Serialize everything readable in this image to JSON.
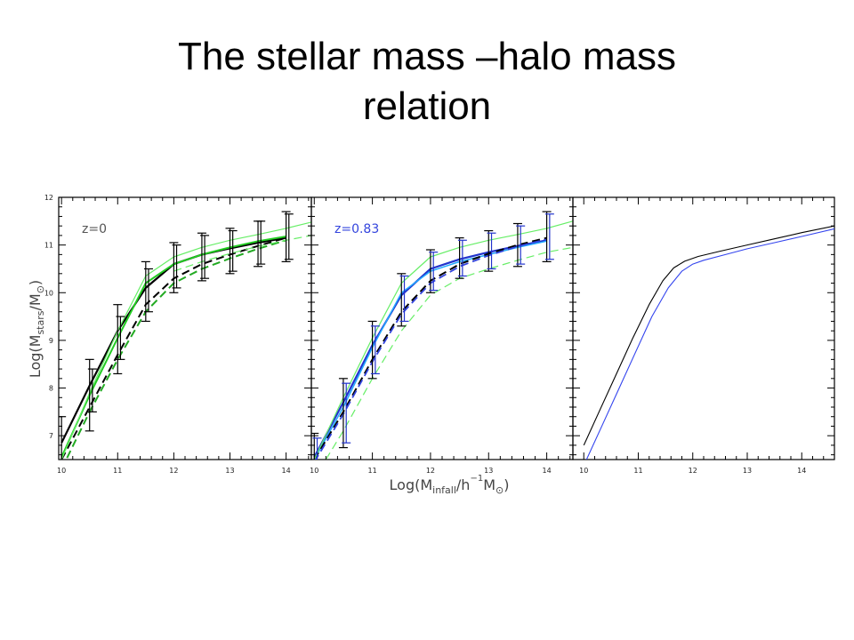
{
  "slide": {
    "title": "The stellar mass –halo mass relation"
  },
  "chart_data": [
    {
      "type": "line",
      "panel": "left",
      "annotation": "z=0",
      "annotation_color": "#555555",
      "xlabel": "Log(M_infall/h^-1 M_sun)",
      "ylabel": "Log(M_stars/M_sun)",
      "xlim": [
        9.95,
        14.45
      ],
      "ylim": [
        6.5,
        12
      ],
      "x_ticks": [
        10,
        11,
        12,
        13,
        14
      ],
      "y_ticks": [
        7,
        8,
        9,
        10,
        11,
        12
      ],
      "series": [
        {
          "style": "solid",
          "color": "#000000",
          "width": 2.2,
          "x": [
            10,
            10.5,
            11,
            11.5,
            12,
            12.5,
            13,
            13.5,
            14
          ],
          "y": [
            6.85,
            8.05,
            9.2,
            10.1,
            10.6,
            10.8,
            10.93,
            11.05,
            11.15
          ]
        },
        {
          "style": "solid",
          "color": "#22cc22",
          "width": 2.0,
          "x": [
            10,
            10.5,
            11,
            11.5,
            12,
            12.5,
            13,
            13.5,
            14
          ],
          "y": [
            6.55,
            7.85,
            9.05,
            10.2,
            10.6,
            10.8,
            10.95,
            11.08,
            11.18
          ]
        },
        {
          "style": "dashed",
          "color": "#000000",
          "width": 2.0,
          "x": [
            10,
            10.5,
            11,
            11.5,
            12,
            12.5,
            13,
            13.5,
            14
          ],
          "y": [
            6.5,
            7.6,
            8.7,
            9.75,
            10.3,
            10.6,
            10.8,
            10.98,
            11.15
          ]
        },
        {
          "style": "dashed",
          "color": "#22aa22",
          "width": 2.0,
          "x": [
            10,
            10.5,
            11,
            11.5,
            12,
            12.5,
            13,
            13.5,
            14
          ],
          "y": [
            6.3,
            7.5,
            8.6,
            9.6,
            10.2,
            10.5,
            10.72,
            10.92,
            11.1
          ]
        },
        {
          "style": "solid",
          "color": "#66ee66",
          "width": 1.2,
          "x": [
            10,
            10.5,
            11,
            11.5,
            12,
            12.5,
            13,
            13.5,
            14,
            14.45
          ],
          "y": [
            6.5,
            7.9,
            9.2,
            10.35,
            10.75,
            10.95,
            11.1,
            11.22,
            11.35,
            11.48
          ]
        },
        {
          "style": "dashed",
          "color": "#66ee66",
          "width": 1.2,
          "x": [
            12,
            12.5,
            13,
            13.5,
            14,
            14.45
          ],
          "y": [
            10.45,
            10.65,
            10.82,
            10.97,
            11.1,
            11.2
          ]
        }
      ],
      "error_bars": [
        {
          "x": 10,
          "y": 6.85,
          "lo": 6.4,
          "hi": 7.4
        },
        {
          "x": 10.5,
          "y": 7.85,
          "lo": 7.1,
          "hi": 8.6
        },
        {
          "x": 10.55,
          "y": 8.05,
          "lo": 7.5,
          "hi": 8.4
        },
        {
          "x": 11,
          "y": 9.2,
          "lo": 8.3,
          "hi": 9.75
        },
        {
          "x": 11.05,
          "y": 8.9,
          "lo": 8.6,
          "hi": 9.5
        },
        {
          "x": 11.5,
          "y": 10.1,
          "lo": 9.4,
          "hi": 10.65
        },
        {
          "x": 11.55,
          "y": 9.8,
          "lo": 9.6,
          "hi": 10.5
        },
        {
          "x": 12,
          "y": 10.6,
          "lo": 10.0,
          "hi": 11.05
        },
        {
          "x": 12.05,
          "y": 10.3,
          "lo": 10.1,
          "hi": 11.0
        },
        {
          "x": 12.5,
          "y": 10.8,
          "lo": 10.25,
          "hi": 11.25
        },
        {
          "x": 12.55,
          "y": 10.6,
          "lo": 10.3,
          "hi": 11.2
        },
        {
          "x": 13,
          "y": 10.93,
          "lo": 10.4,
          "hi": 11.35
        },
        {
          "x": 13.05,
          "y": 10.8,
          "lo": 10.45,
          "hi": 11.3
        },
        {
          "x": 13.5,
          "y": 11.05,
          "lo": 10.55,
          "hi": 11.5
        },
        {
          "x": 13.55,
          "y": 10.98,
          "lo": 10.6,
          "hi": 11.5
        },
        {
          "x": 14,
          "y": 11.15,
          "lo": 10.65,
          "hi": 11.7
        },
        {
          "x": 14.05,
          "y": 11.15,
          "lo": 10.7,
          "hi": 11.65
        }
      ]
    },
    {
      "type": "line",
      "panel": "middle",
      "annotation": "z=0.83",
      "annotation_color": "#3344dd",
      "xlim": [
        9.95,
        14.45
      ],
      "ylim": [
        6.5,
        12
      ],
      "x_ticks": [
        10,
        11,
        12,
        13,
        14
      ],
      "series": [
        {
          "style": "solid",
          "color": "#2233cc",
          "width": 2.2,
          "x": [
            10,
            10.5,
            11,
            11.5,
            12,
            12.5,
            13,
            13.5,
            14
          ],
          "y": [
            6.55,
            7.7,
            8.9,
            9.95,
            10.5,
            10.7,
            10.85,
            10.98,
            11.1
          ]
        },
        {
          "style": "solid",
          "color": "#22aaff",
          "width": 1.5,
          "x": [
            10,
            10.5,
            11,
            11.5,
            12,
            12.5,
            13,
            13.5,
            14
          ],
          "y": [
            6.5,
            7.6,
            8.85,
            10.0,
            10.45,
            10.65,
            10.8,
            10.95,
            11.08
          ]
        },
        {
          "style": "dashed",
          "color": "#000000",
          "width": 2.0,
          "x": [
            10,
            10.5,
            11,
            11.5,
            12,
            12.5,
            13,
            13.5,
            14
          ],
          "y": [
            6.5,
            7.5,
            8.6,
            9.6,
            10.25,
            10.6,
            10.82,
            11.0,
            11.15
          ]
        },
        {
          "style": "dashed",
          "color": "#3344dd",
          "width": 1.8,
          "x": [
            10,
            10.5,
            11,
            11.5,
            12,
            12.5,
            13,
            13.5,
            14
          ],
          "y": [
            6.45,
            7.45,
            8.55,
            9.55,
            10.2,
            10.55,
            10.78,
            10.97,
            11.12
          ]
        },
        {
          "style": "solid",
          "color": "#66ee66",
          "width": 1.2,
          "x": [
            10,
            10.5,
            11,
            11.5,
            12,
            12.5,
            13,
            13.5,
            14,
            14.45
          ],
          "y": [
            6.5,
            7.8,
            9.05,
            10.2,
            10.75,
            10.95,
            11.1,
            11.22,
            11.35,
            11.5
          ]
        },
        {
          "style": "dashed",
          "color": "#66ee66",
          "width": 1.2,
          "x": [
            10.2,
            10.5,
            11,
            11.5,
            12,
            12.5,
            13,
            13.5,
            14,
            14.45
          ],
          "y": [
            6.5,
            7.1,
            8.2,
            9.2,
            9.95,
            10.3,
            10.5,
            10.68,
            10.85,
            10.95
          ]
        }
      ],
      "error_bars": [
        {
          "x": 10,
          "y": 6.55,
          "lo": 6.3,
          "hi": 7.05,
          "color": "#000000"
        },
        {
          "x": 10.05,
          "y": 6.6,
          "lo": 6.4,
          "hi": 6.95,
          "color": "#2233cc"
        },
        {
          "x": 10.5,
          "y": 7.7,
          "lo": 6.75,
          "hi": 8.2,
          "color": "#000000"
        },
        {
          "x": 10.55,
          "y": 7.6,
          "lo": 6.85,
          "hi": 8.1,
          "color": "#2233cc"
        },
        {
          "x": 11,
          "y": 8.9,
          "lo": 8.2,
          "hi": 9.4,
          "color": "#000000"
        },
        {
          "x": 11.05,
          "y": 8.8,
          "lo": 8.3,
          "hi": 9.3,
          "color": "#2233cc"
        },
        {
          "x": 11.5,
          "y": 9.95,
          "lo": 9.3,
          "hi": 10.4,
          "color": "#000000"
        },
        {
          "x": 11.55,
          "y": 9.85,
          "lo": 9.4,
          "hi": 10.35,
          "color": "#2233cc"
        },
        {
          "x": 12,
          "y": 10.5,
          "lo": 10.0,
          "hi": 10.9,
          "color": "#000000"
        },
        {
          "x": 12.05,
          "y": 10.45,
          "lo": 10.05,
          "hi": 10.85,
          "color": "#2233cc"
        },
        {
          "x": 12.5,
          "y": 10.7,
          "lo": 10.3,
          "hi": 11.15,
          "color": "#000000"
        },
        {
          "x": 12.55,
          "y": 10.68,
          "lo": 10.35,
          "hi": 11.1,
          "color": "#2233cc"
        },
        {
          "x": 13,
          "y": 10.85,
          "lo": 10.45,
          "hi": 11.3,
          "color": "#000000"
        },
        {
          "x": 13.05,
          "y": 10.82,
          "lo": 10.5,
          "hi": 11.25,
          "color": "#2233cc"
        },
        {
          "x": 13.5,
          "y": 10.98,
          "lo": 10.55,
          "hi": 11.45,
          "color": "#000000"
        },
        {
          "x": 13.55,
          "y": 10.95,
          "lo": 10.6,
          "hi": 11.4,
          "color": "#2233cc"
        },
        {
          "x": 14,
          "y": 11.1,
          "lo": 10.65,
          "hi": 11.7,
          "color": "#000000"
        },
        {
          "x": 14.05,
          "y": 11.1,
          "lo": 10.7,
          "hi": 11.65,
          "color": "#2233cc"
        }
      ]
    },
    {
      "type": "line",
      "panel": "right",
      "xlim": [
        9.8,
        14.6
      ],
      "ylim": [
        6.5,
        12
      ],
      "x_ticks": [
        10,
        11,
        12,
        13,
        14
      ],
      "series": [
        {
          "style": "solid",
          "color": "#000000",
          "width": 1.1,
          "x": [
            10,
            10.3,
            10.6,
            10.9,
            11.2,
            11.45,
            11.65,
            11.85,
            12.1,
            12.5,
            13,
            13.5,
            14,
            14.6
          ],
          "y": [
            6.8,
            7.55,
            8.3,
            9.05,
            9.75,
            10.25,
            10.52,
            10.66,
            10.76,
            10.87,
            11.0,
            11.13,
            11.26,
            11.4
          ]
        },
        {
          "style": "solid",
          "color": "#3344ee",
          "width": 1.1,
          "x": [
            10.05,
            10.35,
            10.65,
            10.95,
            11.25,
            11.55,
            11.8,
            12.0,
            12.2,
            12.6,
            13,
            13.5,
            14,
            14.6
          ],
          "y": [
            6.5,
            7.25,
            8.0,
            8.75,
            9.5,
            10.1,
            10.45,
            10.6,
            10.68,
            10.8,
            10.92,
            11.05,
            11.18,
            11.34
          ]
        }
      ]
    }
  ]
}
